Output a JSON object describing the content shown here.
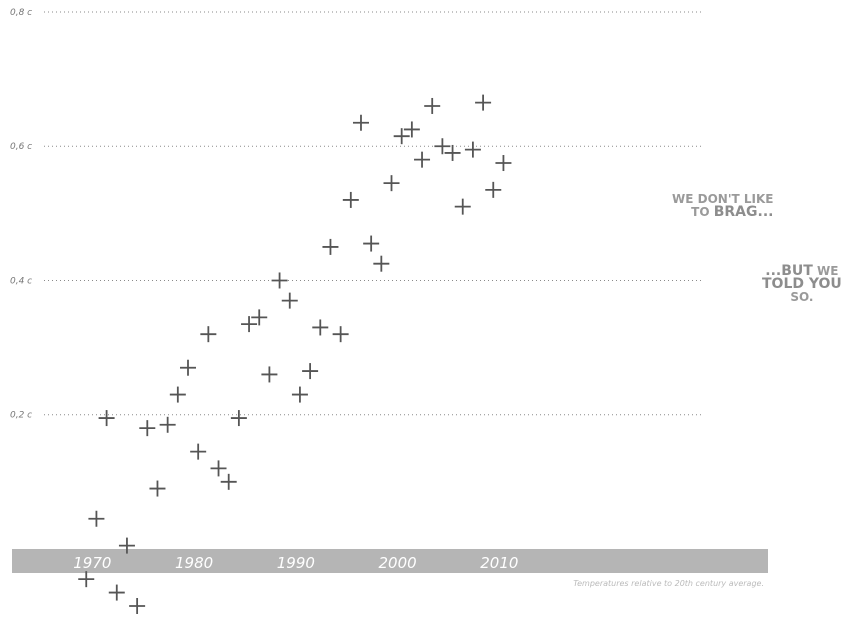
{
  "chart_data": {
    "type": "scatter",
    "marker": "plus",
    "marker_color": "#555555",
    "band_color": "#b5b5b5",
    "grid": true,
    "ylim": [
      -0.085,
      0.8
    ],
    "xlim": [
      1962.3,
      2036.4
    ],
    "y_ticks": [
      {
        "value": 0.2,
        "label": "0,2 c"
      },
      {
        "value": 0.4,
        "label": "0,4 c"
      },
      {
        "value": 0.6,
        "label": "0,6 c"
      },
      {
        "value": 0.8,
        "label": "0,8 c"
      }
    ],
    "x_ticks": [
      {
        "value": 1970,
        "label": "1970"
      },
      {
        "value": 1980,
        "label": "1980"
      },
      {
        "value": 1990,
        "label": "1990"
      },
      {
        "value": 2000,
        "label": "2000"
      },
      {
        "value": 2010,
        "label": "2010"
      }
    ],
    "note": "Temperatures relative to 20th century average.",
    "points": [
      {
        "x": 1969.4,
        "y": -0.045
      },
      {
        "x": 1970.4,
        "y": 0.045
      },
      {
        "x": 1971.4,
        "y": 0.195
      },
      {
        "x": 1972.4,
        "y": -0.065
      },
      {
        "x": 1973.4,
        "y": 0.005
      },
      {
        "x": 1974.4,
        "y": -0.085
      },
      {
        "x": 1975.4,
        "y": 0.18
      },
      {
        "x": 1976.4,
        "y": 0.09
      },
      {
        "x": 1977.4,
        "y": 0.185
      },
      {
        "x": 1978.4,
        "y": 0.23
      },
      {
        "x": 1979.4,
        "y": 0.27
      },
      {
        "x": 1980.4,
        "y": 0.145
      },
      {
        "x": 1981.4,
        "y": 0.32
      },
      {
        "x": 1982.4,
        "y": 0.12
      },
      {
        "x": 1983.4,
        "y": 0.1
      },
      {
        "x": 1984.4,
        "y": 0.195
      },
      {
        "x": 1985.4,
        "y": 0.335
      },
      {
        "x": 1986.4,
        "y": 0.345
      },
      {
        "x": 1987.4,
        "y": 0.26
      },
      {
        "x": 1988.4,
        "y": 0.4
      },
      {
        "x": 1989.4,
        "y": 0.37
      },
      {
        "x": 1990.4,
        "y": 0.23
      },
      {
        "x": 1991.4,
        "y": 0.265
      },
      {
        "x": 1992.4,
        "y": 0.33
      },
      {
        "x": 1993.4,
        "y": 0.45
      },
      {
        "x": 1994.4,
        "y": 0.32
      },
      {
        "x": 1995.4,
        "y": 0.52
      },
      {
        "x": 1996.4,
        "y": 0.635
      },
      {
        "x": 1997.4,
        "y": 0.455
      },
      {
        "x": 1998.4,
        "y": 0.425
      },
      {
        "x": 1999.4,
        "y": 0.545
      },
      {
        "x": 2000.4,
        "y": 0.615
      },
      {
        "x": 2001.4,
        "y": 0.625
      },
      {
        "x": 2002.4,
        "y": 0.58
      },
      {
        "x": 2003.4,
        "y": 0.66
      },
      {
        "x": 2004.4,
        "y": 0.6
      },
      {
        "x": 2005.4,
        "y": 0.59
      },
      {
        "x": 2006.4,
        "y": 0.51
      },
      {
        "x": 2007.4,
        "y": 0.595
      },
      {
        "x": 2008.4,
        "y": 0.665
      },
      {
        "x": 2009.4,
        "y": 0.535
      },
      {
        "x": 2010.4,
        "y": 0.575
      }
    ]
  },
  "annotations": {
    "first_line1": "We don't like",
    "first_line2_prefix": "to ",
    "first_line2_emph": "brag...",
    "second_line1_emph": "...but",
    "second_line1_rest": " we",
    "second_line2_emph": "told you",
    "second_line3": "so."
  }
}
